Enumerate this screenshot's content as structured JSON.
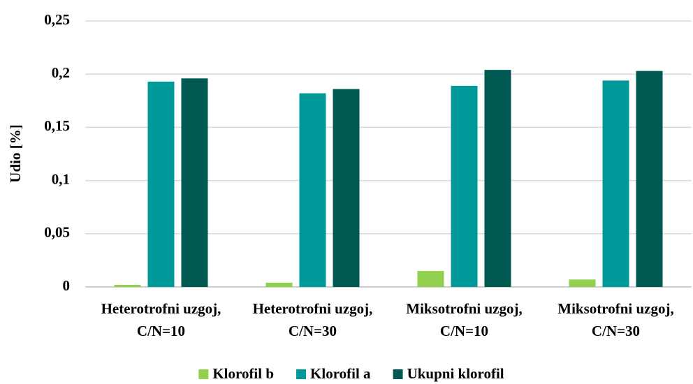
{
  "chart_data": {
    "type": "bar",
    "y_label": "Udio [%]",
    "categories": [
      "Heterotrofni uzgoj, C/N=10",
      "Heterotrofni uzgoj, C/N=30",
      "Miksotrofni uzgoj, C/N=10",
      "Miksotrofni uzgoj, C/N=30"
    ],
    "series": [
      {
        "name": "Klorofil b",
        "color": "#92d050",
        "values": [
          0.002,
          0.004,
          0.015,
          0.007
        ]
      },
      {
        "name": "Klorofil a",
        "color": "#009999",
        "values": [
          0.193,
          0.182,
          0.189,
          0.194
        ]
      },
      {
        "name": "Ukupni klorofil",
        "color": "#005a52",
        "values": [
          0.196,
          0.186,
          0.204,
          0.203
        ]
      }
    ],
    "ylim": [
      0,
      0.25
    ],
    "yticks": [
      0,
      {
        "value": 0.05,
        "label": "0,05"
      },
      {
        "value": 0.1,
        "label": "0,1"
      },
      {
        "value": 0.15,
        "label": "0,15"
      },
      {
        "value": 0.2,
        "label": "0,2"
      },
      {
        "value": 0.25,
        "label": "0,25"
      }
    ],
    "grid": true,
    "legend": "bottom"
  }
}
